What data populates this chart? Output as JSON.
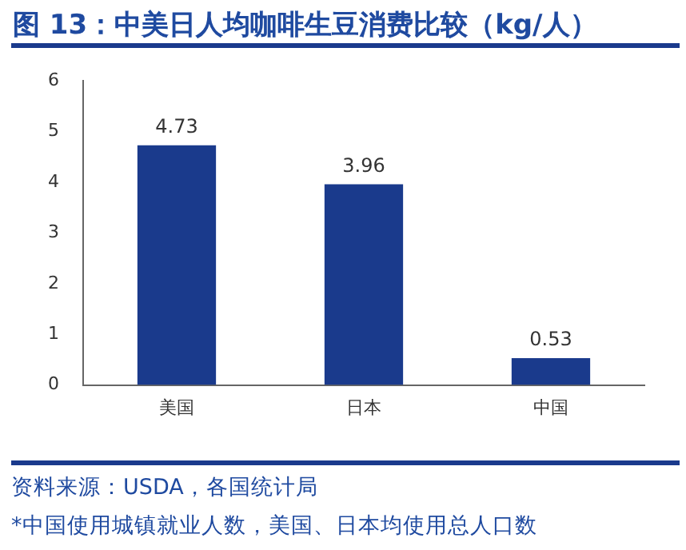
{
  "chart_data": {
    "type": "bar",
    "title": "图 13：中美日人均咖啡生豆消费比较（kg/人）",
    "categories": [
      "美国",
      "日本",
      "中国"
    ],
    "values": [
      4.73,
      3.96,
      0.53
    ],
    "color": "#1a3a8c",
    "ylim": [
      0,
      6
    ],
    "yticks": [
      0,
      1,
      2,
      3,
      4,
      5,
      6
    ],
    "grid": false,
    "legend": false,
    "data_labels": true,
    "annotations": [
      "资料来源：USDA，各国统计局",
      "*中国使用城镇就业人数，美国、日本均使用总人口数"
    ]
  }
}
